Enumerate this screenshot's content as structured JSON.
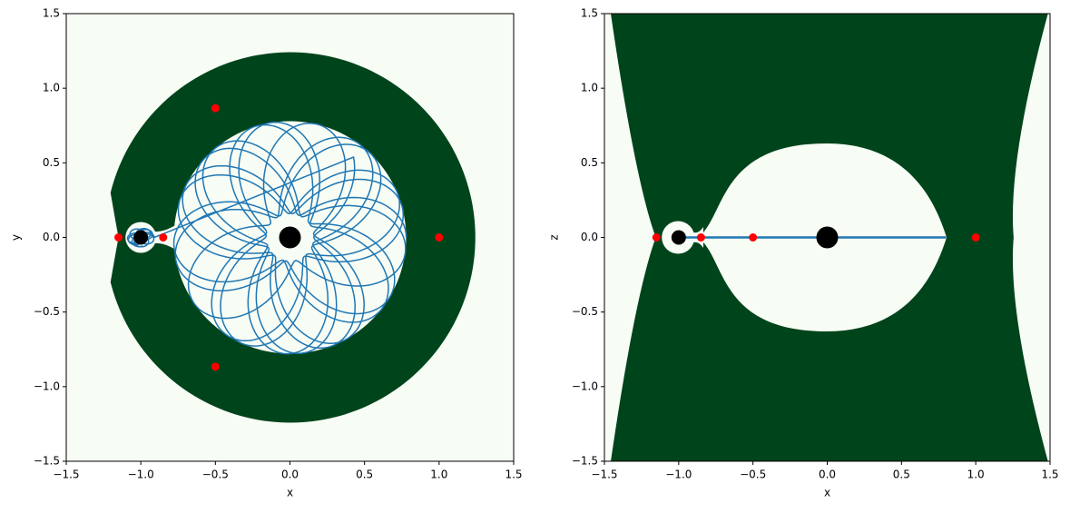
{
  "chart_data": [
    {
      "type": "scatter",
      "x_label": "x",
      "y_label": "y",
      "xlim": [
        -1.5,
        1.5
      ],
      "ylim": [
        -1.5,
        1.5
      ],
      "xticks": [
        {
          "value": -1.5,
          "label": "−1.5"
        },
        {
          "value": -1,
          "label": "−1.0"
        },
        {
          "value": -0.5,
          "label": "−0.5"
        },
        {
          "value": 0,
          "label": "0.0"
        },
        0.5,
        {
          "value": 1,
          "label": "1.0"
        },
        1.5
      ],
      "yticks": [
        {
          "value": -1.5,
          "label": "−1.5"
        },
        {
          "value": -1,
          "label": "−1.0"
        },
        {
          "value": -0.5,
          "label": "−0.5"
        },
        {
          "value": 0,
          "label": "0.0"
        },
        0.5,
        {
          "value": 1,
          "label": "1.0"
        },
        1.5
      ],
      "series": [
        {
          "color": "#000000",
          "x": [
            0,
            -1
          ],
          "values": [
            0,
            0
          ]
        },
        {
          "color": "#ff0000",
          "x": [
            -1.15,
            -0.85,
            -0.5,
            -0.5,
            1.0
          ],
          "values": [
            0,
            0,
            0.866,
            -0.866,
            0
          ]
        }
      ]
    },
    {
      "type": "scatter",
      "x_label": "x",
      "y_label": "z",
      "xlim": [
        -1.5,
        1.5
      ],
      "ylim": [
        -1.5,
        1.5
      ],
      "xticks": [
        {
          "value": -1.5,
          "label": "−1.5"
        },
        {
          "value": -1,
          "label": "−1.0"
        },
        {
          "value": -0.5,
          "label": "−0.5"
        },
        {
          "value": 0,
          "label": "0.0"
        },
        0.5,
        {
          "value": 1,
          "label": "1.0"
        },
        1.5
      ],
      "yticks": [
        {
          "value": -1.5,
          "label": "−1.5"
        },
        {
          "value": -1,
          "label": "−1.0"
        },
        {
          "value": -0.5,
          "label": "−0.5"
        },
        {
          "value": 0,
          "label": "0.0"
        },
        0.5,
        {
          "value": 1,
          "label": "1.0"
        },
        1.5
      ],
      "series": [
        {
          "color": "#000000",
          "x": [
            0,
            -1
          ],
          "values": [
            0,
            0
          ]
        },
        {
          "color": "#ff0000",
          "x": [
            -1.15,
            -0.85,
            -0.5,
            1.0
          ],
          "values": [
            0,
            0,
            0,
            0
          ]
        }
      ]
    }
  ]
}
